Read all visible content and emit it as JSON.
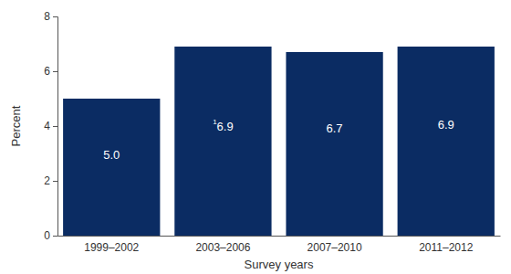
{
  "chart_data": {
    "type": "bar",
    "categories": [
      "1999–2002",
      "2003–2006",
      "2007–2010",
      "2011–2012"
    ],
    "values": [
      5.0,
      6.9,
      6.7,
      6.9
    ],
    "value_labels": [
      "5.0",
      "6.9",
      "6.7",
      "6.9"
    ],
    "annotations": [
      {
        "text": "1",
        "category": "2003–2006"
      }
    ],
    "color": "#0b2c63",
    "x_label": "Survey years",
    "y_label": "Percent",
    "ylim": [
      0,
      8
    ],
    "yticks": [
      0,
      2,
      4,
      6,
      8
    ],
    "grid": false,
    "data_labels": true
  }
}
